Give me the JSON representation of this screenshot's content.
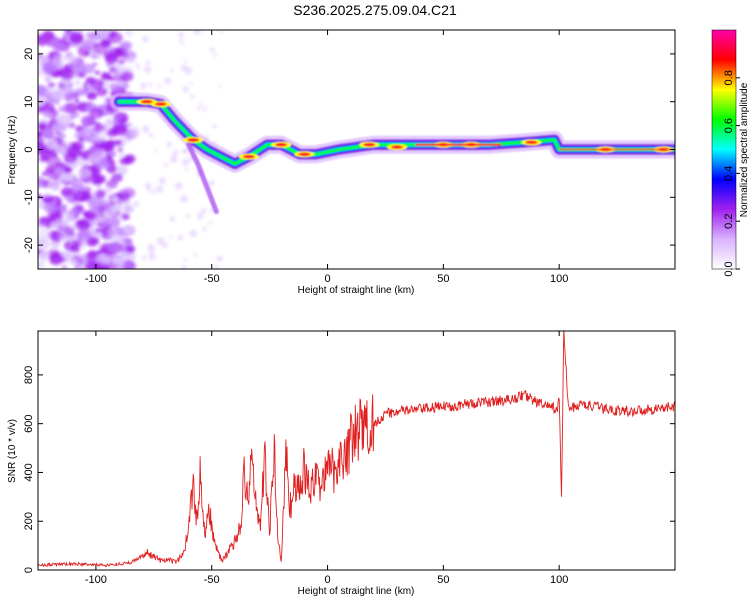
{
  "title": "S236.2025.275.09.04.C21",
  "chart_data": [
    {
      "type": "heatmap",
      "xlabel": "Height of straight line (km)",
      "ylabel": "Frequency (Hz)",
      "xlim": [
        -125,
        150
      ],
      "ylim": [
        -25,
        25
      ],
      "xticks": [
        -100,
        -50,
        0,
        50,
        100
      ],
      "yticks": [
        -20,
        -10,
        0,
        10,
        20
      ],
      "colorbar": {
        "label": "Normalized spectral amplitude",
        "range": [
          0,
          1
        ],
        "ticks": [
          0.0,
          0.2,
          0.4,
          0.6,
          0.8
        ],
        "colormap": [
          "#ffffff",
          "#d9b3ff",
          "#a020f0",
          "#0000ff",
          "#00ffff",
          "#00ff00",
          "#ffff00",
          "#ff0000",
          "#ff00aa"
        ]
      },
      "ridge": [
        {
          "x": -90,
          "y": 10
        },
        {
          "x": -78,
          "y": 10
        },
        {
          "x": -72,
          "y": 9.5
        },
        {
          "x": -66,
          "y": 6
        },
        {
          "x": -58,
          "y": 2
        },
        {
          "x": -52,
          "y": 0
        },
        {
          "x": -46,
          "y": -1.5
        },
        {
          "x": -40,
          "y": -3
        },
        {
          "x": -34,
          "y": -1.5
        },
        {
          "x": -26,
          "y": 1
        },
        {
          "x": -20,
          "y": 1
        },
        {
          "x": -12,
          "y": -1
        },
        {
          "x": -5,
          "y": -1
        },
        {
          "x": 5,
          "y": 0
        },
        {
          "x": 20,
          "y": 1
        },
        {
          "x": 40,
          "y": 1
        },
        {
          "x": 70,
          "y": 1
        },
        {
          "x": 85,
          "y": 1.5
        },
        {
          "x": 98,
          "y": 2
        },
        {
          "x": 100,
          "y": 0
        },
        {
          "x": 120,
          "y": 0
        },
        {
          "x": 150,
          "y": 0
        }
      ]
    },
    {
      "type": "line",
      "xlabel": "Height of straight line (km)",
      "ylabel": "SNR (10 * v/v)",
      "xlim": [
        -125,
        150
      ],
      "ylim": [
        0,
        980
      ],
      "xticks": [
        -100,
        -50,
        0,
        50,
        100
      ],
      "yticks": [
        0,
        200,
        400,
        600,
        800
      ],
      "series": [
        {
          "color": "#e02020",
          "points": [
            [
              -125,
              20
            ],
            [
              -110,
              25
            ],
            [
              -95,
              20
            ],
            [
              -85,
              30
            ],
            [
              -78,
              70
            ],
            [
              -72,
              40
            ],
            [
              -65,
              35
            ],
            [
              -62,
              70
            ],
            [
              -60,
              180
            ],
            [
              -58,
              380
            ],
            [
              -57,
              250
            ],
            [
              -56,
              200
            ],
            [
              -55,
              430
            ],
            [
              -53,
              150
            ],
            [
              -51,
              240
            ],
            [
              -49,
              120
            ],
            [
              -47,
              60
            ],
            [
              -45,
              40
            ],
            [
              -40,
              120
            ],
            [
              -37,
              200
            ],
            [
              -36,
              430
            ],
            [
              -34,
              230
            ],
            [
              -33,
              520
            ],
            [
              -31,
              280
            ],
            [
              -29,
              180
            ],
            [
              -27,
              470
            ],
            [
              -25,
              150
            ],
            [
              -23,
              510
            ],
            [
              -22,
              200
            ],
            [
              -20,
              30
            ],
            [
              -18,
              470
            ],
            [
              -16,
              260
            ],
            [
              -14,
              380
            ],
            [
              -12,
              300
            ],
            [
              -10,
              420
            ],
            [
              -8,
              330
            ],
            [
              -5,
              360
            ],
            [
              -2,
              380
            ],
            [
              0,
              400
            ],
            [
              3,
              420
            ],
            [
              6,
              460
            ],
            [
              10,
              520
            ],
            [
              13,
              570
            ],
            [
              17,
              580
            ],
            [
              20,
              600
            ],
            [
              25,
              640
            ],
            [
              30,
              650
            ],
            [
              40,
              660
            ],
            [
              50,
              670
            ],
            [
              60,
              680
            ],
            [
              70,
              690
            ],
            [
              80,
              700
            ],
            [
              85,
              720
            ],
            [
              90,
              690
            ],
            [
              95,
              670
            ],
            [
              99,
              660
            ],
            [
              100,
              700
            ],
            [
              101,
              300
            ],
            [
              102,
              980
            ],
            [
              104,
              660
            ],
            [
              110,
              680
            ],
            [
              120,
              660
            ],
            [
              130,
              650
            ],
            [
              140,
              660
            ],
            [
              150,
              670
            ]
          ]
        }
      ]
    }
  ]
}
